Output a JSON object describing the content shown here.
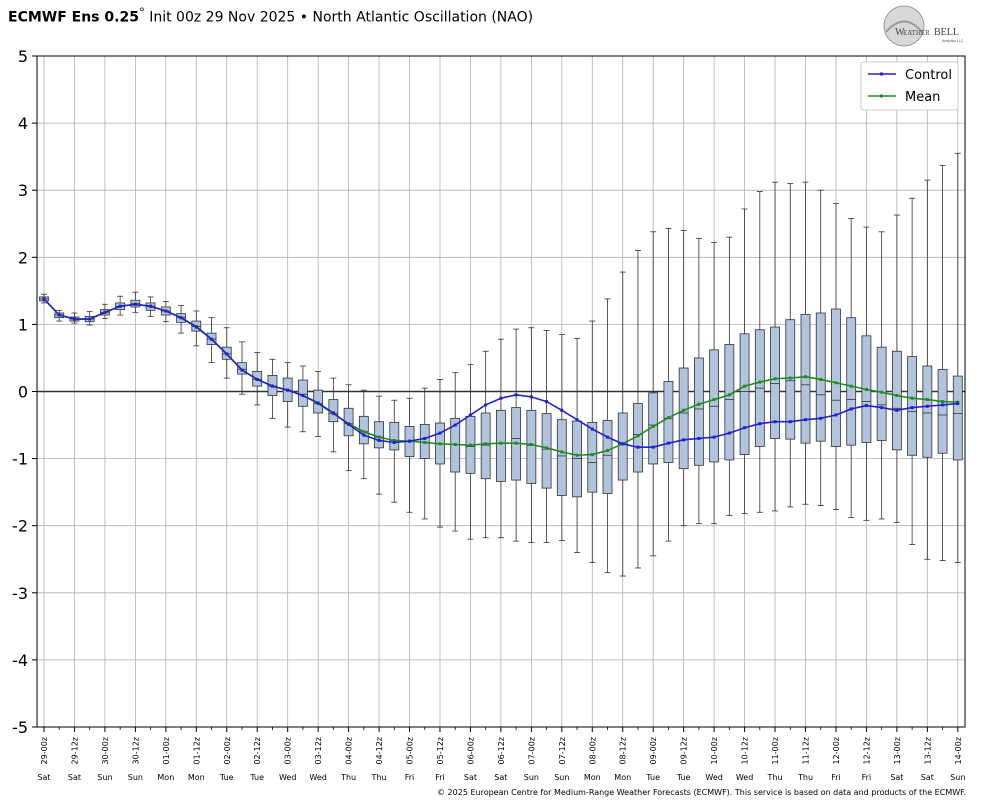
{
  "header": {
    "model": "ECMWF Ens 0.25",
    "degree": "°",
    "init": "Init 00z 29 Nov 2025",
    "bullet": "•",
    "index_name": "North Atlantic Oscillation (NAO)"
  },
  "logo": {
    "text_left": "W",
    "text_mid": "EATHER",
    "text_right": "BELL",
    "sub": "Analytics LLC"
  },
  "footer": "© 2025 European Centre for Medium-Range Weather Forecasts (ECMWF). This service is based on data and products of the ECMWF.",
  "colors": {
    "control": "#2222cc",
    "mean": "#228b22",
    "box_fill": "#b0c4de",
    "box_edge": "#333333",
    "grid": "#b0b0b0",
    "zero_line": "#333333"
  },
  "chart_data": {
    "type": "box",
    "ylim": [
      -5,
      5
    ],
    "yticks": [
      5,
      4,
      3,
      2,
      1,
      0,
      -1,
      -2,
      -3,
      -4,
      -5
    ],
    "grid": true,
    "legend": {
      "placement": "top-right",
      "entries": [
        "Control",
        "Mean"
      ]
    },
    "xtick_labels": [
      "29-00z",
      "29-12z",
      "30-00z",
      "30-12z",
      "01-00z",
      "01-12z",
      "02-00z",
      "02-12z",
      "03-00z",
      "03-12z",
      "04-00z",
      "04-12z",
      "05-00z",
      "05-12z",
      "06-00z",
      "06-12z",
      "07-00z",
      "07-12z",
      "08-00z",
      "08-12z",
      "09-00z",
      "09-12z",
      "10-00z",
      "10-12z",
      "11-00z",
      "11-12z",
      "12-00z",
      "12-12z",
      "13-00z",
      "13-12z",
      "14-00z"
    ],
    "day_labels": [
      "Sat",
      "Sat",
      "Sun",
      "Sun",
      "Mon",
      "Mon",
      "Tue",
      "Tue",
      "Wed",
      "Wed",
      "Thu",
      "Thu",
      "Fri",
      "Fri",
      "Sat",
      "Sat",
      "Sun",
      "Sun",
      "Mon",
      "Mon",
      "Tue",
      "Tue",
      "Wed",
      "Wed",
      "Thu",
      "Thu",
      "Fri",
      "Fri",
      "Sat",
      "Sat",
      "Sun"
    ],
    "step_hours": 6,
    "series": [
      {
        "name": "Control",
        "values": [
          1.38,
          1.14,
          1.08,
          1.08,
          1.18,
          1.27,
          1.3,
          1.27,
          1.2,
          1.1,
          0.96,
          0.78,
          0.56,
          0.32,
          0.18,
          0.08,
          0.02,
          -0.06,
          -0.17,
          -0.32,
          -0.49,
          -0.65,
          -0.73,
          -0.76,
          -0.74,
          -0.7,
          -0.62,
          -0.5,
          -0.35,
          -0.2,
          -0.1,
          -0.05,
          -0.08,
          -0.15,
          -0.28,
          -0.42,
          -0.56,
          -0.68,
          -0.78,
          -0.83,
          -0.83,
          -0.77,
          -0.72,
          -0.7,
          -0.68,
          -0.62,
          -0.54,
          -0.48,
          -0.45,
          -0.45,
          -0.42,
          -0.4,
          -0.35,
          -0.26,
          -0.21,
          -0.24,
          -0.28,
          -0.24,
          -0.22,
          -0.2,
          -0.18
        ]
      },
      {
        "name": "Mean",
        "values": [
          1.38,
          1.14,
          1.08,
          1.08,
          1.18,
          1.27,
          1.3,
          1.27,
          1.2,
          1.1,
          0.97,
          0.78,
          0.56,
          0.32,
          0.18,
          0.08,
          0.02,
          -0.06,
          -0.18,
          -0.33,
          -0.48,
          -0.6,
          -0.68,
          -0.73,
          -0.74,
          -0.76,
          -0.78,
          -0.79,
          -0.8,
          -0.78,
          -0.77,
          -0.77,
          -0.79,
          -0.84,
          -0.9,
          -0.95,
          -0.94,
          -0.88,
          -0.78,
          -0.66,
          -0.52,
          -0.39,
          -0.28,
          -0.19,
          -0.12,
          -0.05,
          0.08,
          0.14,
          0.19,
          0.2,
          0.22,
          0.18,
          0.13,
          0.08,
          0.03,
          -0.01,
          -0.06,
          -0.1,
          -0.12,
          -0.15,
          -0.16
        ]
      }
    ],
    "boxes": [
      {
        "min": 1.32,
        "q1": 1.35,
        "med": 1.38,
        "q3": 1.41,
        "max": 1.45
      },
      {
        "min": 1.05,
        "q1": 1.1,
        "med": 1.14,
        "q3": 1.17,
        "max": 1.21
      },
      {
        "min": 1.02,
        "q1": 1.05,
        "med": 1.08,
        "q3": 1.11,
        "max": 1.17
      },
      {
        "min": 0.99,
        "q1": 1.04,
        "med": 1.08,
        "q3": 1.12,
        "max": 1.19
      },
      {
        "min": 1.09,
        "q1": 1.14,
        "med": 1.18,
        "q3": 1.22,
        "max": 1.3
      },
      {
        "min": 1.14,
        "q1": 1.22,
        "med": 1.27,
        "q3": 1.32,
        "max": 1.42
      },
      {
        "min": 1.18,
        "q1": 1.26,
        "med": 1.31,
        "q3": 1.36,
        "max": 1.48
      },
      {
        "min": 1.12,
        "q1": 1.21,
        "med": 1.27,
        "q3": 1.32,
        "max": 1.41
      },
      {
        "min": 1.04,
        "q1": 1.14,
        "med": 1.2,
        "q3": 1.26,
        "max": 1.34
      },
      {
        "min": 0.87,
        "q1": 1.03,
        "med": 1.1,
        "q3": 1.16,
        "max": 1.28
      },
      {
        "min": 0.68,
        "q1": 0.9,
        "med": 0.97,
        "q3": 1.05,
        "max": 1.2
      },
      {
        "min": 0.43,
        "q1": 0.7,
        "med": 0.78,
        "q3": 0.87,
        "max": 1.1
      },
      {
        "min": 0.2,
        "q1": 0.48,
        "med": 0.56,
        "q3": 0.66,
        "max": 0.95
      },
      {
        "min": -0.04,
        "q1": 0.26,
        "med": 0.33,
        "q3": 0.43,
        "max": 0.74
      },
      {
        "min": -0.2,
        "q1": 0.08,
        "med": 0.18,
        "q3": 0.3,
        "max": 0.58
      },
      {
        "min": -0.4,
        "q1": -0.06,
        "med": 0.08,
        "q3": 0.24,
        "max": 0.48
      },
      {
        "min": -0.53,
        "q1": -0.15,
        "med": 0.02,
        "q3": 0.2,
        "max": 0.43
      },
      {
        "min": -0.6,
        "q1": -0.22,
        "med": -0.04,
        "q3": 0.17,
        "max": 0.38
      },
      {
        "min": -0.67,
        "q1": -0.32,
        "med": -0.18,
        "q3": 0.02,
        "max": 0.3
      },
      {
        "min": -0.9,
        "q1": -0.45,
        "med": -0.33,
        "q3": -0.12,
        "max": 0.2
      },
      {
        "min": -1.18,
        "q1": -0.66,
        "med": -0.48,
        "q3": -0.25,
        "max": 0.1
      },
      {
        "min": -1.3,
        "q1": -0.78,
        "med": -0.6,
        "q3": -0.37,
        "max": 0.02
      },
      {
        "min": -1.53,
        "q1": -0.84,
        "med": -0.68,
        "q3": -0.45,
        "max": -0.07
      },
      {
        "min": -1.65,
        "q1": -0.87,
        "med": -0.73,
        "q3": -0.46,
        "max": -0.13
      },
      {
        "min": -1.8,
        "q1": -0.97,
        "med": -0.74,
        "q3": -0.52,
        "max": -0.1
      },
      {
        "min": -1.9,
        "q1": -1.0,
        "med": -0.76,
        "q3": -0.49,
        "max": 0.05
      },
      {
        "min": -2.02,
        "q1": -1.08,
        "med": -0.78,
        "q3": -0.47,
        "max": 0.18
      },
      {
        "min": -2.08,
        "q1": -1.2,
        "med": -0.79,
        "q3": -0.4,
        "max": 0.28
      },
      {
        "min": -2.2,
        "q1": -1.22,
        "med": -0.82,
        "q3": -0.37,
        "max": 0.4
      },
      {
        "min": -2.18,
        "q1": -1.3,
        "med": -0.8,
        "q3": -0.32,
        "max": 0.6
      },
      {
        "min": -2.18,
        "q1": -1.34,
        "med": -0.77,
        "q3": -0.28,
        "max": 0.78
      },
      {
        "min": -2.23,
        "q1": -1.32,
        "med": -0.7,
        "q3": -0.24,
        "max": 0.93
      },
      {
        "min": -2.25,
        "q1": -1.37,
        "med": -0.8,
        "q3": -0.28,
        "max": 0.95
      },
      {
        "min": -2.25,
        "q1": -1.44,
        "med": -0.86,
        "q3": -0.33,
        "max": 0.91
      },
      {
        "min": -2.22,
        "q1": -1.55,
        "med": -0.96,
        "q3": -0.42,
        "max": 0.85
      },
      {
        "min": -2.4,
        "q1": -1.57,
        "med": -1.0,
        "q3": -0.44,
        "max": 0.79
      },
      {
        "min": -2.55,
        "q1": -1.5,
        "med": -1.06,
        "q3": -0.46,
        "max": 1.05
      },
      {
        "min": -2.7,
        "q1": -1.52,
        "med": -0.95,
        "q3": -0.43,
        "max": 1.38
      },
      {
        "min": -2.75,
        "q1": -1.32,
        "med": -0.78,
        "q3": -0.32,
        "max": 1.78
      },
      {
        "min": -2.63,
        "q1": -1.2,
        "med": -0.64,
        "q3": -0.18,
        "max": 2.1
      },
      {
        "min": -2.45,
        "q1": -1.08,
        "med": -0.5,
        "q3": -0.02,
        "max": 2.38
      },
      {
        "min": -2.23,
        "q1": -1.06,
        "med": -0.4,
        "q3": 0.15,
        "max": 2.43
      },
      {
        "min": -2.0,
        "q1": -1.15,
        "med": -0.32,
        "q3": 0.35,
        "max": 2.4
      },
      {
        "min": -1.97,
        "q1": -1.1,
        "med": -0.26,
        "q3": 0.5,
        "max": 2.28
      },
      {
        "min": -1.97,
        "q1": -1.05,
        "med": -0.22,
        "q3": 0.62,
        "max": 2.22
      },
      {
        "min": -1.85,
        "q1": -1.02,
        "med": -0.12,
        "q3": 0.7,
        "max": 2.3
      },
      {
        "min": -1.82,
        "q1": -0.94,
        "med": 0.0,
        "q3": 0.86,
        "max": 2.72
      },
      {
        "min": -1.8,
        "q1": -0.82,
        "med": 0.05,
        "q3": 0.92,
        "max": 2.98
      },
      {
        "min": -1.78,
        "q1": -0.7,
        "med": 0.12,
        "q3": 0.96,
        "max": 3.12
      },
      {
        "min": -1.72,
        "q1": -0.71,
        "med": 0.16,
        "q3": 1.07,
        "max": 3.1
      },
      {
        "min": -1.68,
        "q1": -0.77,
        "med": 0.1,
        "q3": 1.15,
        "max": 3.12
      },
      {
        "min": -1.7,
        "q1": -0.74,
        "med": -0.05,
        "q3": 1.17,
        "max": 3.0
      },
      {
        "min": -1.76,
        "q1": -0.82,
        "med": -0.13,
        "q3": 1.23,
        "max": 2.8
      },
      {
        "min": -1.88,
        "q1": -0.8,
        "med": -0.12,
        "q3": 1.1,
        "max": 2.58
      },
      {
        "min": -1.92,
        "q1": -0.76,
        "med": -0.15,
        "q3": 0.83,
        "max": 2.45
      },
      {
        "min": -1.9,
        "q1": -0.73,
        "med": -0.2,
        "q3": 0.66,
        "max": 2.38
      },
      {
        "min": -1.95,
        "q1": -0.87,
        "med": -0.25,
        "q3": 0.6,
        "max": 2.63
      },
      {
        "min": -2.28,
        "q1": -0.95,
        "med": -0.3,
        "q3": 0.52,
        "max": 2.88
      },
      {
        "min": -2.5,
        "q1": -0.98,
        "med": -0.32,
        "q3": 0.38,
        "max": 3.15
      },
      {
        "min": -2.52,
        "q1": -0.92,
        "med": -0.35,
        "q3": 0.33,
        "max": 3.37
      },
      {
        "min": -2.55,
        "q1": -1.02,
        "med": -0.33,
        "q3": 0.23,
        "max": 3.55
      }
    ]
  }
}
